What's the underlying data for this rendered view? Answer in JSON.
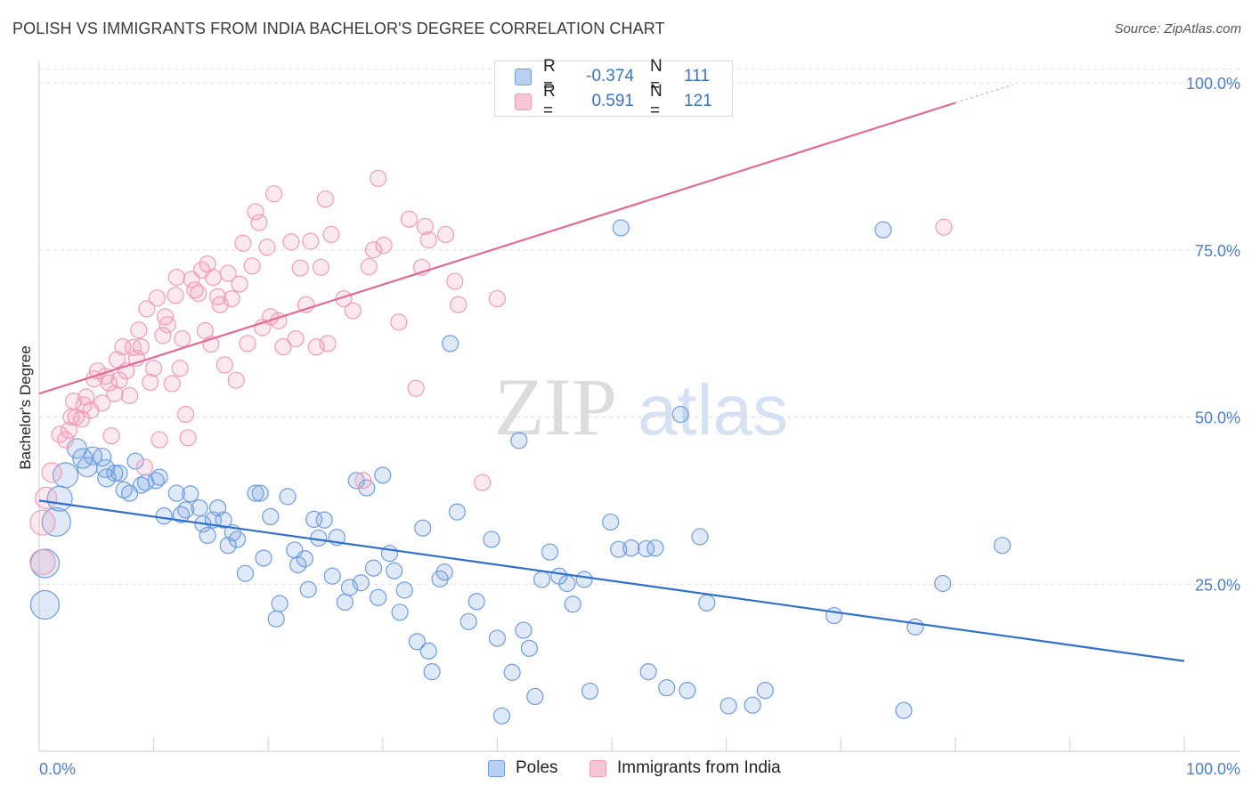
{
  "title": "POLISH VS IMMIGRANTS FROM INDIA BACHELOR'S DEGREE CORRELATION CHART",
  "source": "Source: ZipAtlas.com",
  "watermark": {
    "part1": "ZIP",
    "part2": "atlas"
  },
  "legend_stats": {
    "rows": [
      {
        "series": "Poles",
        "r_label": "R =",
        "r_value": "-0.374",
        "n_label": "N =",
        "n_value": "111"
      },
      {
        "series": "Immigrants from India",
        "r_label": "R =",
        "r_value": "0.591",
        "n_label": "N =",
        "n_value": "121"
      }
    ]
  },
  "chart_data": {
    "type": "scatter",
    "title": "POLISH VS IMMIGRANTS FROM INDIA BACHELOR'S DEGREE CORRELATION CHART",
    "xlabel": "",
    "ylabel": "Bachelor's Degree",
    "xlim": [
      0,
      100
    ],
    "ylim": [
      0,
      102
    ],
    "x_tick_labels": [
      "0.0%",
      "100.0%"
    ],
    "y_ticks": [
      25,
      50,
      75,
      100
    ],
    "y_tick_labels": [
      "25.0%",
      "50.0%",
      "75.0%",
      "100.0%"
    ],
    "grid": "horizontal dashed",
    "legend_position": "top-center and bottom",
    "series": [
      {
        "name": "Poles",
        "color": "#6d9de0",
        "line_color": "#2f6fcf",
        "trend": {
          "x": [
            0,
            100
          ],
          "y": [
            37.5,
            13.5
          ]
        },
        "points": [
          [
            0.5,
            21.9,
            16
          ],
          [
            0.5,
            28.1,
            16
          ],
          [
            1.5,
            34.3,
            16
          ],
          [
            1.8,
            37.8,
            14
          ],
          [
            2.3,
            41.3,
            14
          ],
          [
            3.3,
            45.3,
            11
          ],
          [
            3.8,
            43.8,
            11
          ],
          [
            4.2,
            42.5,
            11
          ],
          [
            4.7,
            44.2,
            10
          ],
          [
            5.5,
            44.0,
            10
          ],
          [
            5.8,
            42.3,
            10
          ],
          [
            5.9,
            40.9,
            10
          ],
          [
            6.6,
            41.6,
            9
          ],
          [
            7.0,
            41.6,
            9
          ],
          [
            7.4,
            39.1,
            9
          ],
          [
            7.9,
            38.6,
            9
          ],
          [
            8.4,
            43.4,
            9
          ],
          [
            8.9,
            39.8,
            9
          ],
          [
            9.3,
            40.2,
            9
          ],
          [
            10.2,
            40.5,
            9
          ],
          [
            10.5,
            41.0,
            9
          ],
          [
            10.9,
            35.2,
            9
          ],
          [
            12.0,
            38.6,
            9
          ],
          [
            12.4,
            35.4,
            9
          ],
          [
            12.8,
            36.1,
            9
          ],
          [
            13.2,
            38.5,
            9
          ],
          [
            14.0,
            36.4,
            9
          ],
          [
            14.3,
            34.0,
            9
          ],
          [
            14.7,
            32.3,
            9
          ],
          [
            15.2,
            34.6,
            9
          ],
          [
            15.6,
            36.4,
            9
          ],
          [
            16.1,
            34.6,
            9
          ],
          [
            16.5,
            30.8,
            9
          ],
          [
            16.9,
            32.7,
            9
          ],
          [
            17.3,
            31.7,
            9
          ],
          [
            18.0,
            26.6,
            9
          ],
          [
            18.9,
            38.6,
            9
          ],
          [
            19.3,
            38.6,
            9
          ],
          [
            19.6,
            28.9,
            9
          ],
          [
            20.2,
            35.1,
            9
          ],
          [
            20.7,
            19.8,
            9
          ],
          [
            21.0,
            22.1,
            9
          ],
          [
            21.7,
            38.1,
            9
          ],
          [
            22.3,
            30.1,
            9
          ],
          [
            22.6,
            27.9,
            9
          ],
          [
            23.2,
            28.8,
            9
          ],
          [
            23.5,
            24.2,
            9
          ],
          [
            24.0,
            34.7,
            9
          ],
          [
            24.4,
            31.9,
            9
          ],
          [
            24.9,
            34.6,
            9
          ],
          [
            25.6,
            26.2,
            9
          ],
          [
            26.0,
            32.0,
            9
          ],
          [
            26.7,
            22.3,
            9
          ],
          [
            27.1,
            24.5,
            9
          ],
          [
            27.7,
            40.5,
            9
          ],
          [
            28.1,
            25.2,
            9
          ],
          [
            28.6,
            39.4,
            9
          ],
          [
            29.2,
            27.4,
            9
          ],
          [
            29.6,
            23.0,
            9
          ],
          [
            30.0,
            41.3,
            9
          ],
          [
            30.6,
            29.6,
            9
          ],
          [
            31.0,
            27.0,
            9
          ],
          [
            31.5,
            20.8,
            9
          ],
          [
            31.9,
            24.1,
            9
          ],
          [
            33.0,
            16.4,
            9
          ],
          [
            33.5,
            33.4,
            9
          ],
          [
            34.0,
            15.0,
            9
          ],
          [
            34.3,
            11.9,
            9
          ],
          [
            35.0,
            25.8,
            9
          ],
          [
            35.4,
            26.8,
            9
          ],
          [
            35.9,
            61.0,
            9
          ],
          [
            36.5,
            35.8,
            9
          ],
          [
            37.5,
            19.4,
            9
          ],
          [
            38.2,
            22.4,
            9
          ],
          [
            39.5,
            31.7,
            9
          ],
          [
            40.0,
            16.9,
            9
          ],
          [
            40.4,
            5.3,
            9
          ],
          [
            41.3,
            11.8,
            9
          ],
          [
            41.9,
            46.5,
            9
          ],
          [
            42.3,
            18.1,
            9
          ],
          [
            42.8,
            15.4,
            9
          ],
          [
            43.3,
            8.2,
            9
          ],
          [
            43.9,
            25.7,
            9
          ],
          [
            44.6,
            29.8,
            9
          ],
          [
            45.4,
            26.2,
            9
          ],
          [
            46.1,
            25.1,
            9
          ],
          [
            46.6,
            22.0,
            9
          ],
          [
            47.6,
            25.7,
            9
          ],
          [
            48.1,
            9.0,
            9
          ],
          [
            49.9,
            34.3,
            9
          ],
          [
            50.6,
            30.2,
            9
          ],
          [
            50.8,
            78.3,
            9
          ],
          [
            51.7,
            30.4,
            9
          ],
          [
            53.2,
            11.9,
            9
          ],
          [
            53.8,
            30.4,
            9
          ],
          [
            53.0,
            30.3,
            9
          ],
          [
            54.8,
            9.5,
            9
          ],
          [
            56.0,
            50.4,
            9
          ],
          [
            56.6,
            9.1,
            9
          ],
          [
            57.7,
            32.1,
            9
          ],
          [
            58.3,
            22.2,
            9
          ],
          [
            60.2,
            6.8,
            9
          ],
          [
            62.3,
            6.9,
            9
          ],
          [
            63.4,
            9.1,
            9
          ],
          [
            69.4,
            20.3,
            9
          ],
          [
            73.7,
            78.0,
            9
          ],
          [
            75.5,
            6.1,
            9
          ],
          [
            76.5,
            18.6,
            9
          ],
          [
            78.9,
            25.1,
            9
          ],
          [
            84.1,
            30.8,
            9
          ]
        ]
      },
      {
        "name": "Immigrants from India",
        "color": "#f29bb7",
        "line_color": "#e46a92",
        "trend": {
          "x": [
            0,
            80
          ],
          "y": [
            53.5,
            97.0
          ]
        },
        "points": [
          [
            0.3,
            28.3,
            14
          ],
          [
            0.3,
            34.2,
            14
          ],
          [
            0.6,
            37.9,
            12
          ],
          [
            1.1,
            41.7,
            11
          ],
          [
            1.8,
            47.4,
            9
          ],
          [
            2.3,
            46.6,
            9
          ],
          [
            2.6,
            48.0,
            9
          ],
          [
            2.8,
            50.0,
            9
          ],
          [
            3.0,
            52.4,
            9
          ],
          [
            3.2,
            50.0,
            9
          ],
          [
            3.7,
            49.7,
            9
          ],
          [
            3.9,
            51.8,
            9
          ],
          [
            4.1,
            53.0,
            9
          ],
          [
            4.5,
            51.0,
            9
          ],
          [
            4.8,
            55.7,
            9
          ],
          [
            5.1,
            56.9,
            9
          ],
          [
            5.5,
            52.1,
            9
          ],
          [
            5.8,
            56.1,
            9
          ],
          [
            6.1,
            55.1,
            9
          ],
          [
            6.3,
            47.2,
            9
          ],
          [
            6.6,
            53.5,
            9
          ],
          [
            6.8,
            58.6,
            9
          ],
          [
            7.0,
            55.5,
            9
          ],
          [
            7.3,
            60.5,
            9
          ],
          [
            7.6,
            56.9,
            9
          ],
          [
            7.9,
            53.2,
            9
          ],
          [
            8.2,
            60.4,
            9
          ],
          [
            8.5,
            58.8,
            9
          ],
          [
            8.7,
            63.0,
            9
          ],
          [
            8.9,
            60.5,
            9
          ],
          [
            9.2,
            42.5,
            9
          ],
          [
            9.4,
            66.2,
            9
          ],
          [
            9.7,
            55.2,
            9
          ],
          [
            10.0,
            57.3,
            9
          ],
          [
            10.3,
            67.8,
            9
          ],
          [
            10.5,
            46.6,
            9
          ],
          [
            10.8,
            62.2,
            9
          ],
          [
            11.0,
            65.0,
            9
          ],
          [
            11.2,
            63.8,
            9
          ],
          [
            11.6,
            55.0,
            9
          ],
          [
            11.9,
            68.2,
            9
          ],
          [
            12.0,
            70.9,
            9
          ],
          [
            12.3,
            57.3,
            9
          ],
          [
            12.5,
            61.7,
            9
          ],
          [
            12.8,
            50.4,
            9
          ],
          [
            13.0,
            46.9,
            9
          ],
          [
            13.3,
            70.6,
            9
          ],
          [
            13.6,
            69.0,
            9
          ],
          [
            13.9,
            68.5,
            9
          ],
          [
            14.2,
            72.0,
            9
          ],
          [
            14.5,
            62.9,
            9
          ],
          [
            14.7,
            72.9,
            9
          ],
          [
            15.0,
            60.9,
            9
          ],
          [
            15.2,
            70.9,
            9
          ],
          [
            15.6,
            68.0,
            9
          ],
          [
            15.8,
            66.8,
            9
          ],
          [
            16.2,
            57.8,
            9
          ],
          [
            16.5,
            71.5,
            9
          ],
          [
            16.8,
            67.7,
            9
          ],
          [
            17.2,
            55.5,
            9
          ],
          [
            17.5,
            69.9,
            9
          ],
          [
            17.8,
            76.0,
            9
          ],
          [
            18.2,
            61.0,
            9
          ],
          [
            18.6,
            72.6,
            9
          ],
          [
            18.9,
            80.7,
            9
          ],
          [
            19.2,
            79.1,
            9
          ],
          [
            19.5,
            63.4,
            9
          ],
          [
            19.9,
            75.4,
            9
          ],
          [
            20.2,
            65.0,
            9
          ],
          [
            20.5,
            83.4,
            9
          ],
          [
            20.9,
            64.4,
            9
          ],
          [
            21.3,
            60.5,
            9
          ],
          [
            22.0,
            76.2,
            9
          ],
          [
            22.4,
            61.7,
            9
          ],
          [
            22.8,
            72.3,
            9
          ],
          [
            23.3,
            66.8,
            9
          ],
          [
            23.7,
            76.3,
            9
          ],
          [
            24.2,
            60.5,
            9
          ],
          [
            24.6,
            72.4,
            9
          ],
          [
            25.0,
            82.6,
            9
          ],
          [
            25.2,
            61.0,
            9
          ],
          [
            25.5,
            77.3,
            9
          ],
          [
            26.6,
            67.7,
            9
          ],
          [
            27.4,
            65.9,
            9
          ],
          [
            28.3,
            40.5,
            9
          ],
          [
            28.8,
            72.5,
            9
          ],
          [
            29.2,
            75.0,
            9
          ],
          [
            29.6,
            85.7,
            9
          ],
          [
            30.1,
            75.7,
            9
          ],
          [
            31.4,
            64.2,
            9
          ],
          [
            32.3,
            79.6,
            9
          ],
          [
            32.9,
            54.3,
            9
          ],
          [
            33.4,
            72.4,
            9
          ],
          [
            33.7,
            78.5,
            9
          ],
          [
            34.0,
            76.5,
            9
          ],
          [
            35.5,
            77.3,
            9
          ],
          [
            36.3,
            70.3,
            9
          ],
          [
            36.6,
            66.8,
            9
          ],
          [
            38.7,
            40.2,
            9
          ],
          [
            40.0,
            67.7,
            9
          ],
          [
            79.0,
            78.4,
            9
          ]
        ]
      }
    ]
  }
}
